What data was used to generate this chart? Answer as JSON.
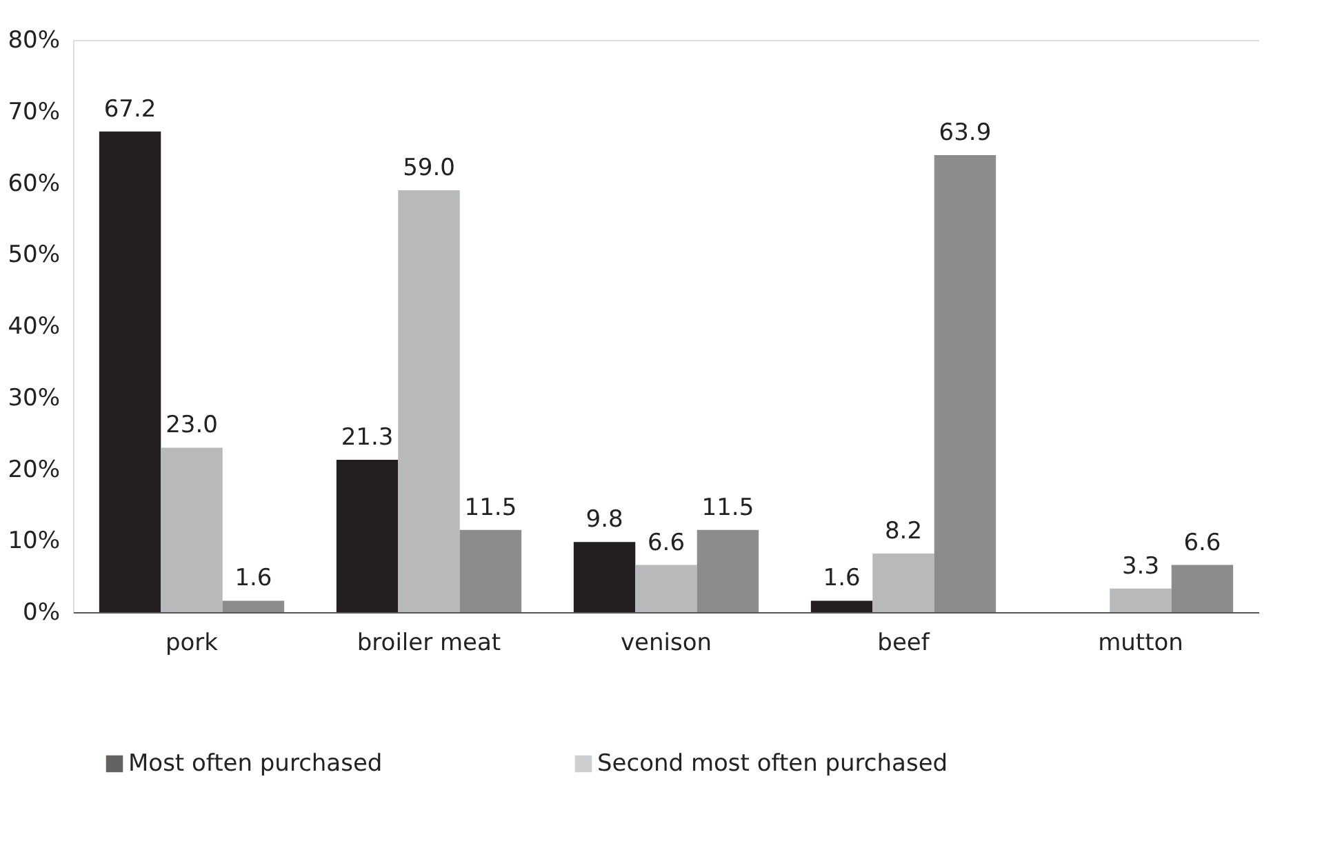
{
  "chart_data": {
    "type": "bar",
    "categories": [
      "pork",
      "broiler meat",
      "venison",
      "beef",
      "mutton"
    ],
    "series": [
      {
        "name": "Most often purchased",
        "color": "#231f20",
        "values": [
          67.2,
          21.3,
          9.8,
          1.6,
          null
        ],
        "value_labels": [
          "67.2",
          "21.3",
          "9.8",
          "1.6",
          null
        ]
      },
      {
        "name": "Second most often purchased",
        "color": "#b8b9bb",
        "values": [
          23.0,
          59.0,
          6.6,
          8.2,
          3.3
        ],
        "value_labels": [
          "23.0",
          "59.0",
          "6.6",
          "8.2",
          "3.3"
        ]
      },
      {
        "color": "#8b8c8e",
        "values": [
          1.6,
          11.5,
          11.5,
          63.9,
          6.6
        ],
        "value_labels": [
          "1.6",
          "11.5",
          "11.5",
          "63.9",
          "6.6"
        ]
      }
    ],
    "ylim": [
      0,
      80
    ],
    "yticks": [
      {
        "value": 0,
        "label": "0%"
      },
      {
        "value": 10,
        "label": "10%"
      },
      {
        "value": 20,
        "label": "20%"
      },
      {
        "value": 30,
        "label": "30%"
      },
      {
        "value": 40,
        "label": "40%"
      },
      {
        "value": 50,
        "label": "50%"
      },
      {
        "value": 60,
        "label": "60%"
      },
      {
        "value": 70,
        "label": "70%"
      },
      {
        "value": 80,
        "label": "80%"
      }
    ],
    "grid": false,
    "legend": "bottom"
  }
}
